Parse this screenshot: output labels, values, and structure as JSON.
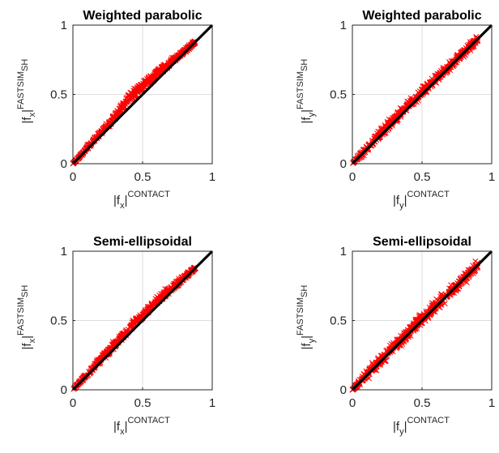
{
  "chart_data": [
    {
      "type": "scatter",
      "title": "Weighted parabolic",
      "xlabel": {
        "base": "|f",
        "sub": "x",
        "close": "|",
        "sup": "CONTACT"
      },
      "ylabel": {
        "base": "|f",
        "sub": "x",
        "close": "|",
        "sup": "FASTSIM",
        "sup_sub": "SH"
      },
      "xlim": [
        0,
        1
      ],
      "ylim": [
        0,
        1
      ],
      "xticks": [
        "0",
        "0.5",
        "1"
      ],
      "yticks": [
        "0",
        "0.5",
        "1"
      ],
      "grid": true,
      "marker": "x",
      "marker_color": "#ff0000",
      "reference_line": {
        "x": [
          0,
          1
        ],
        "y": [
          0,
          1
        ],
        "color": "#000000"
      },
      "point_cloud": {
        "x_range": [
          0.0,
          0.88
        ],
        "deviation_at_x": [
          [
            0.0,
            0.0
          ],
          [
            0.3,
            0.05
          ],
          [
            0.4,
            0.1
          ],
          [
            0.6,
            0.07
          ],
          [
            0.88,
            0.0
          ]
        ],
        "band_halfwidth": 0.02
      }
    },
    {
      "type": "scatter",
      "title": "Weighted parabolic",
      "xlabel": {
        "base": "|f",
        "sub": "y",
        "close": "|",
        "sup": "CONTACT"
      },
      "ylabel": {
        "base": "|f",
        "sub": "y",
        "close": "|",
        "sup": "FASTSIM",
        "sup_sub": "SH"
      },
      "xlim": [
        0,
        1
      ],
      "ylim": [
        0,
        1
      ],
      "xticks": [
        "0",
        "0.5",
        "1"
      ],
      "yticks": [
        "0",
        "0.5",
        "1"
      ],
      "grid": true,
      "marker": "x",
      "marker_color": "#ff0000",
      "reference_line": {
        "x": [
          0,
          1
        ],
        "y": [
          0,
          1
        ],
        "color": "#000000"
      },
      "point_cloud": {
        "x_range": [
          0.0,
          0.9
        ],
        "deviation_at_x": [
          [
            0.0,
            0.0
          ],
          [
            0.3,
            0.03
          ],
          [
            0.6,
            0.02
          ],
          [
            0.9,
            0.0
          ]
        ],
        "band_halfwidth": 0.045
      }
    },
    {
      "type": "scatter",
      "title": "Semi-ellipsoidal",
      "xlabel": {
        "base": "|f",
        "sub": "x",
        "close": "|",
        "sup": "CONTACT"
      },
      "ylabel": {
        "base": "|f",
        "sub": "x",
        "close": "|",
        "sup": "FASTSIM",
        "sup_sub": "SH"
      },
      "xlim": [
        0,
        1
      ],
      "ylim": [
        0,
        1
      ],
      "xticks": [
        "0",
        "0.5",
        "1"
      ],
      "yticks": [
        "0",
        "0.5",
        "1"
      ],
      "grid": true,
      "marker": "x",
      "marker_color": "#ff0000",
      "reference_line": {
        "x": [
          0,
          1
        ],
        "y": [
          0,
          1
        ],
        "color": "#000000"
      },
      "point_cloud": {
        "x_range": [
          0.0,
          0.88
        ],
        "deviation_at_x": [
          [
            0.0,
            0.0
          ],
          [
            0.3,
            0.04
          ],
          [
            0.45,
            0.06
          ],
          [
            0.65,
            0.05
          ],
          [
            0.88,
            0.0
          ]
        ],
        "band_halfwidth": 0.025
      }
    },
    {
      "type": "scatter",
      "title": "Semi-ellipsoidal",
      "xlabel": {
        "base": "|f",
        "sub": "y",
        "close": "|",
        "sup": "CONTACT"
      },
      "ylabel": {
        "base": "|f",
        "sub": "y",
        "close": "|",
        "sup": "FASTSIM",
        "sup_sub": "SH"
      },
      "xlim": [
        0,
        1
      ],
      "ylim": [
        0,
        1
      ],
      "xticks": [
        "0",
        "0.5",
        "1"
      ],
      "yticks": [
        "0",
        "0.5",
        "1"
      ],
      "grid": true,
      "marker": "x",
      "marker_color": "#ff0000",
      "reference_line": {
        "x": [
          0,
          1
        ],
        "y": [
          0,
          1
        ],
        "color": "#000000"
      },
      "point_cloud": {
        "x_range": [
          0.0,
          0.9
        ],
        "deviation_at_x": [
          [
            0.0,
            0.0
          ],
          [
            0.3,
            0.02
          ],
          [
            0.6,
            0.01
          ],
          [
            0.9,
            0.0
          ]
        ],
        "band_halfwidth": 0.055
      }
    }
  ]
}
